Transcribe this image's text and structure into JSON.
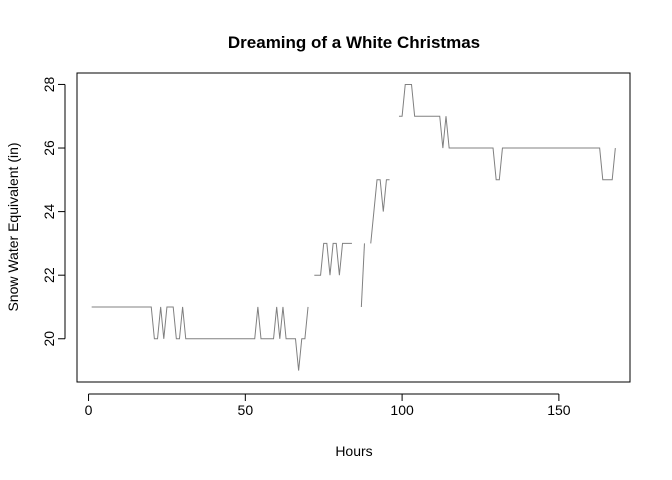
{
  "chart_data": {
    "type": "line",
    "title": "Dreaming of a White Christmas",
    "xlabel": "Hours",
    "ylabel": "Snow Water Equivalent (in)",
    "xlim": [
      -3.68,
      172.68
    ],
    "ylim": [
      18.64,
      28.36
    ],
    "xticks": [
      0,
      50,
      100,
      150
    ],
    "yticks": [
      20,
      22,
      24,
      26,
      28
    ],
    "grid": false,
    "line_color": "#808080",
    "series": [
      {
        "segments": [
          [
            [
              1,
              21
            ],
            [
              2,
              21
            ],
            [
              3,
              21
            ],
            [
              4,
              21
            ],
            [
              5,
              21
            ],
            [
              6,
              21
            ],
            [
              7,
              21
            ],
            [
              8,
              21
            ],
            [
              9,
              21
            ],
            [
              10,
              21
            ],
            [
              11,
              21
            ],
            [
              12,
              21
            ],
            [
              13,
              21
            ],
            [
              14,
              21
            ],
            [
              15,
              21
            ],
            [
              16,
              21
            ],
            [
              17,
              21
            ],
            [
              18,
              21
            ],
            [
              19,
              21
            ],
            [
              20,
              21
            ],
            [
              21,
              20
            ],
            [
              22,
              20
            ],
            [
              23,
              21
            ],
            [
              24,
              20
            ],
            [
              25,
              21
            ],
            [
              26,
              21
            ],
            [
              27,
              21
            ],
            [
              28,
              20
            ],
            [
              29,
              20
            ],
            [
              30,
              21
            ],
            [
              31,
              20
            ],
            [
              32,
              20
            ],
            [
              33,
              20
            ],
            [
              34,
              20
            ],
            [
              35,
              20
            ],
            [
              36,
              20
            ],
            [
              37,
              20
            ],
            [
              38,
              20
            ],
            [
              39,
              20
            ],
            [
              40,
              20
            ],
            [
              41,
              20
            ],
            [
              42,
              20
            ],
            [
              43,
              20
            ],
            [
              44,
              20
            ],
            [
              45,
              20
            ],
            [
              46,
              20
            ],
            [
              47,
              20
            ],
            [
              48,
              20
            ],
            [
              49,
              20
            ],
            [
              50,
              20
            ],
            [
              51,
              20
            ],
            [
              52,
              20
            ],
            [
              53,
              20
            ],
            [
              54,
              21
            ],
            [
              55,
              20
            ],
            [
              56,
              20
            ],
            [
              57,
              20
            ],
            [
              58,
              20
            ],
            [
              59,
              20
            ],
            [
              60,
              21
            ],
            [
              61,
              20
            ],
            [
              62,
              21
            ],
            [
              63,
              20
            ],
            [
              64,
              20
            ],
            [
              65,
              20
            ],
            [
              66,
              20
            ],
            [
              67,
              19
            ],
            [
              68,
              20
            ],
            [
              69,
              20
            ],
            [
              70,
              21
            ]
          ],
          [
            [
              72,
              22
            ],
            [
              73,
              22
            ],
            [
              74,
              22
            ],
            [
              75,
              23
            ],
            [
              76,
              23
            ],
            [
              77,
              22
            ],
            [
              78,
              23
            ],
            [
              79,
              23
            ],
            [
              80,
              22
            ],
            [
              81,
              23
            ],
            [
              82,
              23
            ],
            [
              83,
              23
            ],
            [
              84,
              23
            ]
          ],
          [
            [
              87,
              21
            ],
            [
              88,
              23
            ]
          ],
          [
            [
              90,
              23
            ],
            [
              91,
              24
            ],
            [
              92,
              25
            ],
            [
              93,
              25
            ],
            [
              94,
              24
            ],
            [
              95,
              25
            ],
            [
              96,
              25
            ]
          ],
          [
            [
              99,
              27
            ],
            [
              100,
              27
            ],
            [
              101,
              28
            ],
            [
              102,
              28
            ],
            [
              103,
              28
            ],
            [
              104,
              27
            ],
            [
              105,
              27
            ],
            [
              106,
              27
            ],
            [
              107,
              27
            ],
            [
              108,
              27
            ],
            [
              109,
              27
            ],
            [
              110,
              27
            ],
            [
              111,
              27
            ],
            [
              112,
              27
            ],
            [
              113,
              26
            ],
            [
              114,
              27
            ],
            [
              115,
              26
            ],
            [
              116,
              26
            ],
            [
              117,
              26
            ],
            [
              118,
              26
            ],
            [
              119,
              26
            ],
            [
              120,
              26
            ],
            [
              121,
              26
            ],
            [
              122,
              26
            ],
            [
              123,
              26
            ],
            [
              124,
              26
            ],
            [
              125,
              26
            ],
            [
              126,
              26
            ],
            [
              127,
              26
            ],
            [
              128,
              26
            ],
            [
              129,
              26
            ],
            [
              130,
              25
            ],
            [
              131,
              25
            ],
            [
              132,
              26
            ],
            [
              133,
              26
            ],
            [
              134,
              26
            ],
            [
              135,
              26
            ],
            [
              136,
              26
            ],
            [
              137,
              26
            ],
            [
              138,
              26
            ],
            [
              139,
              26
            ],
            [
              140,
              26
            ],
            [
              141,
              26
            ],
            [
              142,
              26
            ],
            [
              143,
              26
            ],
            [
              144,
              26
            ],
            [
              145,
              26
            ],
            [
              146,
              26
            ],
            [
              147,
              26
            ],
            [
              148,
              26
            ],
            [
              149,
              26
            ],
            [
              150,
              26
            ],
            [
              151,
              26
            ],
            [
              152,
              26
            ],
            [
              153,
              26
            ],
            [
              154,
              26
            ],
            [
              155,
              26
            ],
            [
              156,
              26
            ],
            [
              157,
              26
            ],
            [
              158,
              26
            ],
            [
              159,
              26
            ],
            [
              160,
              26
            ],
            [
              161,
              26
            ],
            [
              162,
              26
            ],
            [
              163,
              26
            ],
            [
              164,
              25
            ],
            [
              165,
              25
            ],
            [
              166,
              25
            ],
            [
              167,
              25
            ],
            [
              168,
              26
            ]
          ]
        ]
      }
    ]
  }
}
